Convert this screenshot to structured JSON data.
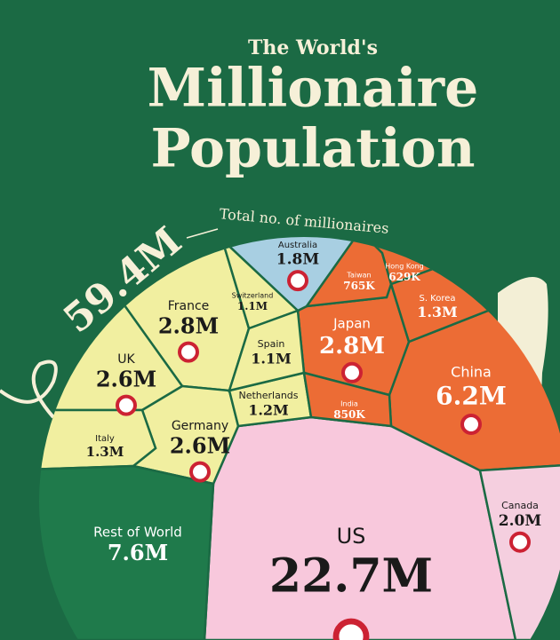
{
  "chart_data": {
    "type": "voronoi",
    "subtitle": "The World's",
    "title_lines": [
      "Millionaire",
      "Population"
    ],
    "total_label": "59.4M",
    "total_caption": "Total no. of millionaires",
    "categories": [
      "US",
      "China",
      "Japan",
      "France",
      "UK",
      "Germany",
      "Canada",
      "Australia",
      "Italy",
      "S. Korea",
      "Netherlands",
      "Switzerland",
      "Spain",
      "Taiwan",
      "India",
      "Hong Kong",
      "Rest of World"
    ],
    "values": [
      22.7,
      6.2,
      2.8,
      2.8,
      2.6,
      2.6,
      2.0,
      1.8,
      1.3,
      1.3,
      1.2,
      1.1,
      1.1,
      0.765,
      0.85,
      0.629,
      7.6
    ],
    "value_labels": [
      "22.7M",
      "6.2M",
      "2.8M",
      "2.8M",
      "2.6M",
      "2.6M",
      "2.0M",
      "1.8M",
      "1.3M",
      "1.3M",
      "1.2M",
      "1.1M",
      "1.1M",
      "765K",
      "850K",
      "629K",
      "7.6M"
    ],
    "colors": [
      "#f8c8dc",
      "#ec6c35",
      "#ec6c35",
      "#f1efa0",
      "#f1efa0",
      "#f1efa0",
      "#f5cfdf",
      "#a8cfe2",
      "#f1efa0",
      "#ec6c35",
      "#f1efa0",
      "#f1efa0",
      "#f1efa0",
      "#ec6c35",
      "#ec6c35",
      "#ec6c35",
      "#1f7a4b"
    ]
  }
}
